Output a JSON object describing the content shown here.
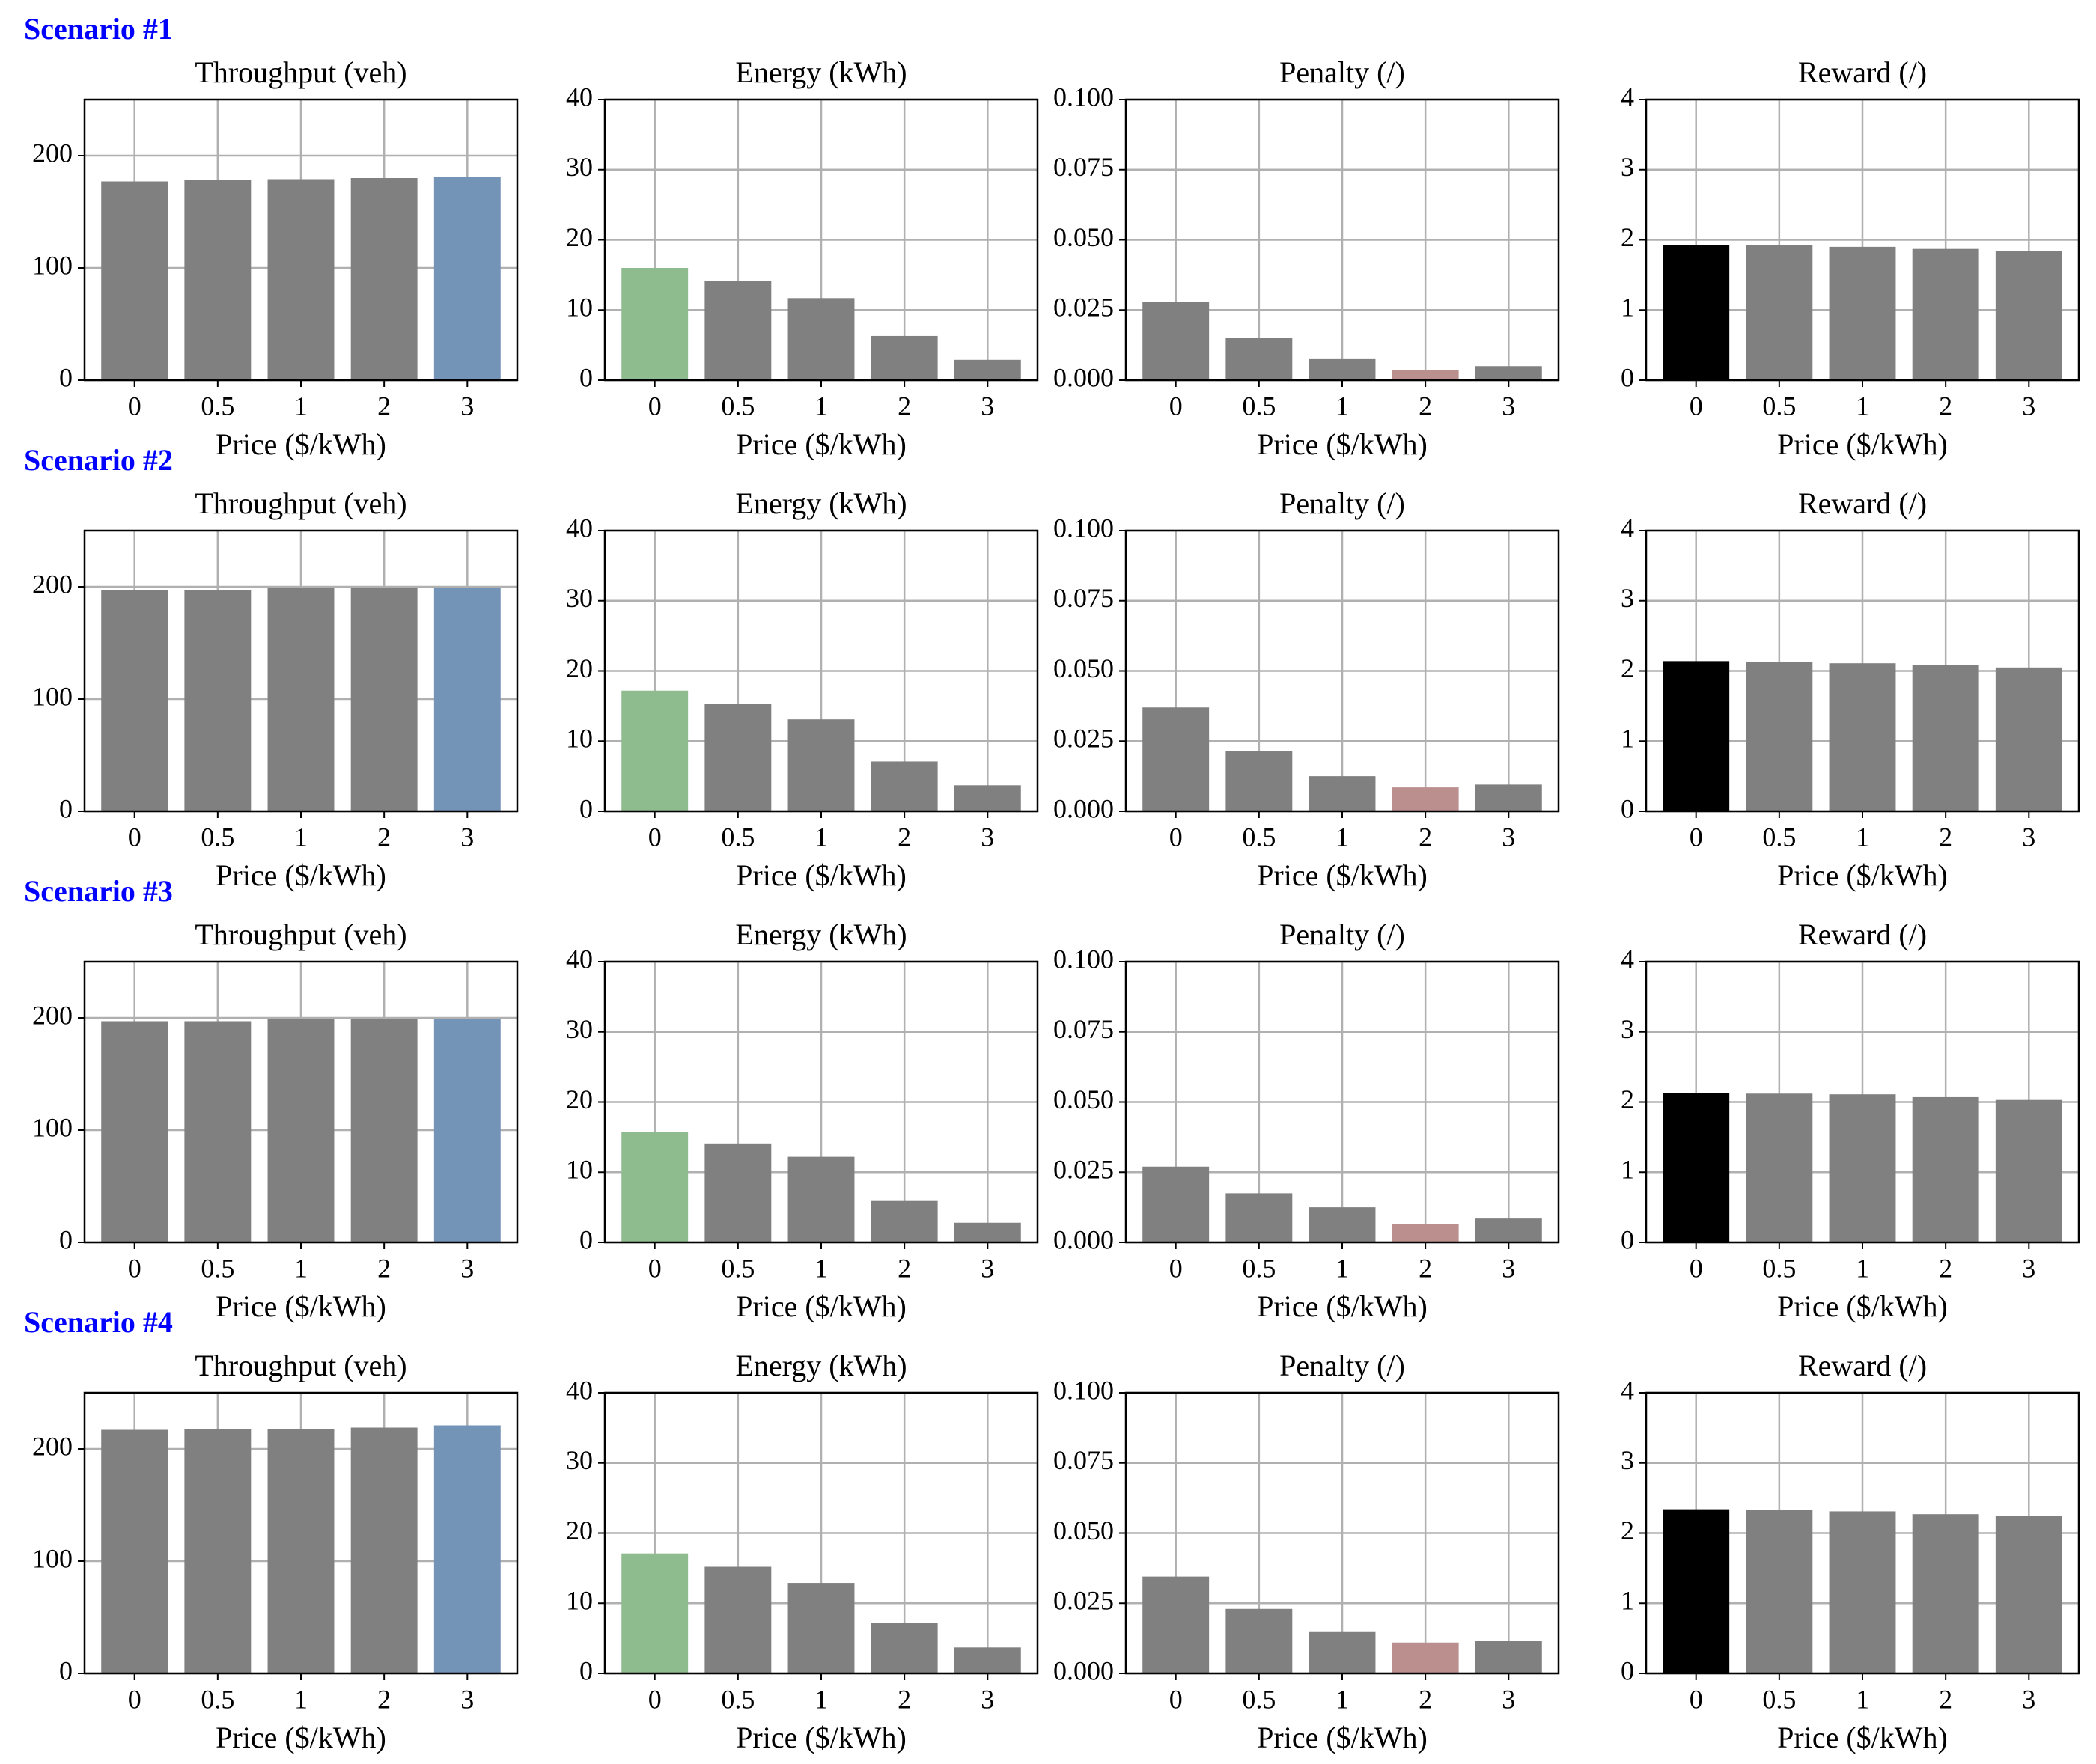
{
  "scenarios": [
    "Scenario #1",
    "Scenario #2",
    "Scenario #3",
    "Scenario #4"
  ],
  "chart_data": [
    {
      "type": "bar",
      "title": "Throughput (veh)",
      "xlabel": "Price ($/kWh)",
      "categories": [
        "0",
        "0.5",
        "1",
        "2",
        "3"
      ],
      "values": [
        177,
        178,
        179,
        180,
        181
      ],
      "colors": [
        "#808080",
        "#808080",
        "#808080",
        "#808080",
        "#7393b7"
      ],
      "ylim": [
        0,
        250
      ],
      "yticks": [
        0,
        100,
        200
      ],
      "grid": true
    },
    {
      "type": "bar",
      "title": "Energy (kWh)",
      "xlabel": "Price ($/kWh)",
      "categories": [
        "0",
        "0.5",
        "1",
        "2",
        "3"
      ],
      "values": [
        16,
        14.1,
        11.7,
        6.3,
        2.9
      ],
      "colors": [
        "#8fbc8f",
        "#808080",
        "#808080",
        "#808080",
        "#808080"
      ],
      "ylim": [
        0,
        40
      ],
      "yticks": [
        0,
        10,
        20,
        30,
        40
      ],
      "grid": true
    },
    {
      "type": "bar",
      "title": "Penalty (/)",
      "xlabel": "Price ($/kWh)",
      "categories": [
        "0",
        "0.5",
        "1",
        "2",
        "3"
      ],
      "values": [
        0.028,
        0.015,
        0.0075,
        0.0035,
        0.005
      ],
      "colors": [
        "#808080",
        "#808080",
        "#808080",
        "#bc8f8f",
        "#808080"
      ],
      "ylim": [
        0,
        0.1
      ],
      "yticks": [
        {
          "value": 0,
          "label": "0.000"
        },
        {
          "value": 0.025,
          "label": "0.025"
        },
        {
          "value": 0.05,
          "label": "0.050"
        },
        {
          "value": 0.075,
          "label": "0.075"
        },
        {
          "value": 0.1,
          "label": "0.100"
        }
      ],
      "grid": true
    },
    {
      "type": "bar",
      "title": "Reward (/)",
      "xlabel": "Price ($/kWh)",
      "categories": [
        "0",
        "0.5",
        "1",
        "2",
        "3"
      ],
      "values": [
        1.93,
        1.92,
        1.9,
        1.87,
        1.84
      ],
      "colors": [
        "#000000",
        "#808080",
        "#808080",
        "#808080",
        "#808080"
      ],
      "ylim": [
        0,
        4
      ],
      "yticks": [
        0,
        1,
        2,
        3,
        4
      ],
      "grid": true
    },
    {
      "type": "bar",
      "title": "Throughput (veh)",
      "xlabel": "Price ($/kWh)",
      "categories": [
        "0",
        "0.5",
        "1",
        "2",
        "3"
      ],
      "values": [
        197,
        197,
        199,
        199,
        199
      ],
      "colors": [
        "#808080",
        "#808080",
        "#808080",
        "#808080",
        "#7393b7"
      ],
      "ylim": [
        0,
        250
      ],
      "yticks": [
        0,
        100,
        200
      ],
      "grid": true
    },
    {
      "type": "bar",
      "title": "Energy (kWh)",
      "xlabel": "Price ($/kWh)",
      "categories": [
        "0",
        "0.5",
        "1",
        "2",
        "3"
      ],
      "values": [
        17.2,
        15.3,
        13.1,
        7.1,
        3.7
      ],
      "colors": [
        "#8fbc8f",
        "#808080",
        "#808080",
        "#808080",
        "#808080"
      ],
      "ylim": [
        0,
        40
      ],
      "yticks": [
        0,
        10,
        20,
        30,
        40
      ],
      "grid": true
    },
    {
      "type": "bar",
      "title": "Penalty (/)",
      "xlabel": "Price ($/kWh)",
      "categories": [
        "0",
        "0.5",
        "1",
        "2",
        "3"
      ],
      "values": [
        0.037,
        0.0215,
        0.0125,
        0.0085,
        0.0095
      ],
      "colors": [
        "#808080",
        "#808080",
        "#808080",
        "#bc8f8f",
        "#808080"
      ],
      "ylim": [
        0,
        0.1
      ],
      "yticks": [
        {
          "value": 0,
          "label": "0.000"
        },
        {
          "value": 0.025,
          "label": "0.025"
        },
        {
          "value": 0.05,
          "label": "0.050"
        },
        {
          "value": 0.075,
          "label": "0.075"
        },
        {
          "value": 0.1,
          "label": "0.100"
        }
      ],
      "grid": true
    },
    {
      "type": "bar",
      "title": "Reward (/)",
      "xlabel": "Price ($/kWh)",
      "categories": [
        "0",
        "0.5",
        "1",
        "2",
        "3"
      ],
      "values": [
        2.14,
        2.13,
        2.11,
        2.08,
        2.05
      ],
      "colors": [
        "#000000",
        "#808080",
        "#808080",
        "#808080",
        "#808080"
      ],
      "ylim": [
        0,
        4
      ],
      "yticks": [
        0,
        1,
        2,
        3,
        4
      ],
      "grid": true
    },
    {
      "type": "bar",
      "title": "Throughput (veh)",
      "xlabel": "Price ($/kWh)",
      "categories": [
        "0",
        "0.5",
        "1",
        "2",
        "3"
      ],
      "values": [
        197,
        197,
        199,
        199,
        199
      ],
      "colors": [
        "#808080",
        "#808080",
        "#808080",
        "#808080",
        "#7393b7"
      ],
      "ylim": [
        0,
        250
      ],
      "yticks": [
        0,
        100,
        200
      ],
      "grid": true
    },
    {
      "type": "bar",
      "title": "Energy (kWh)",
      "xlabel": "Price ($/kWh)",
      "categories": [
        "0",
        "0.5",
        "1",
        "2",
        "3"
      ],
      "values": [
        15.7,
        14.1,
        12.2,
        5.9,
        2.8
      ],
      "colors": [
        "#8fbc8f",
        "#808080",
        "#808080",
        "#808080",
        "#808080"
      ],
      "ylim": [
        0,
        40
      ],
      "yticks": [
        0,
        10,
        20,
        30,
        40
      ],
      "grid": true
    },
    {
      "type": "bar",
      "title": "Penalty (/)",
      "xlabel": "Price ($/kWh)",
      "categories": [
        "0",
        "0.5",
        "1",
        "2",
        "3"
      ],
      "values": [
        0.027,
        0.0175,
        0.0125,
        0.0065,
        0.0085
      ],
      "colors": [
        "#808080",
        "#808080",
        "#808080",
        "#bc8f8f",
        "#808080"
      ],
      "ylim": [
        0,
        0.1
      ],
      "yticks": [
        {
          "value": 0,
          "label": "0.000"
        },
        {
          "value": 0.025,
          "label": "0.025"
        },
        {
          "value": 0.05,
          "label": "0.050"
        },
        {
          "value": 0.075,
          "label": "0.075"
        },
        {
          "value": 0.1,
          "label": "0.100"
        }
      ],
      "grid": true
    },
    {
      "type": "bar",
      "title": "Reward (/)",
      "xlabel": "Price ($/kWh)",
      "categories": [
        "0",
        "0.5",
        "1",
        "2",
        "3"
      ],
      "values": [
        2.13,
        2.12,
        2.11,
        2.07,
        2.03
      ],
      "colors": [
        "#000000",
        "#808080",
        "#808080",
        "#808080",
        "#808080"
      ],
      "ylim": [
        0,
        4
      ],
      "yticks": [
        0,
        1,
        2,
        3,
        4
      ],
      "grid": true
    },
    {
      "type": "bar",
      "title": "Throughput (veh)",
      "xlabel": "Price ($/kWh)",
      "categories": [
        "0",
        "0.5",
        "1",
        "2",
        "3"
      ],
      "values": [
        217,
        218,
        218,
        219,
        221
      ],
      "colors": [
        "#808080",
        "#808080",
        "#808080",
        "#808080",
        "#7393b7"
      ],
      "ylim": [
        0,
        250
      ],
      "yticks": [
        0,
        100,
        200
      ],
      "grid": true
    },
    {
      "type": "bar",
      "title": "Energy (kWh)",
      "xlabel": "Price ($/kWh)",
      "categories": [
        "0",
        "0.5",
        "1",
        "2",
        "3"
      ],
      "values": [
        17.1,
        15.2,
        12.9,
        7.2,
        3.7
      ],
      "colors": [
        "#8fbc8f",
        "#808080",
        "#808080",
        "#808080",
        "#808080"
      ],
      "ylim": [
        0,
        40
      ],
      "yticks": [
        0,
        10,
        20,
        30,
        40
      ],
      "grid": true
    },
    {
      "type": "bar",
      "title": "Penalty (/)",
      "xlabel": "Price ($/kWh)",
      "categories": [
        "0",
        "0.5",
        "1",
        "2",
        "3"
      ],
      "values": [
        0.0345,
        0.023,
        0.015,
        0.011,
        0.0115
      ],
      "colors": [
        "#808080",
        "#808080",
        "#808080",
        "#bc8f8f",
        "#808080"
      ],
      "ylim": [
        0,
        0.1
      ],
      "yticks": [
        {
          "value": 0,
          "label": "0.000"
        },
        {
          "value": 0.025,
          "label": "0.025"
        },
        {
          "value": 0.05,
          "label": "0.050"
        },
        {
          "value": 0.075,
          "label": "0.075"
        },
        {
          "value": 0.1,
          "label": "0.100"
        }
      ],
      "grid": true
    },
    {
      "type": "bar",
      "title": "Reward (/)",
      "xlabel": "Price ($/kWh)",
      "categories": [
        "0",
        "0.5",
        "1",
        "2",
        "3"
      ],
      "values": [
        2.34,
        2.33,
        2.31,
        2.27,
        2.24
      ],
      "colors": [
        "#000000",
        "#808080",
        "#808080",
        "#808080",
        "#808080"
      ],
      "ylim": [
        0,
        4
      ],
      "yticks": [
        0,
        1,
        2,
        3,
        4
      ],
      "grid": true
    }
  ]
}
